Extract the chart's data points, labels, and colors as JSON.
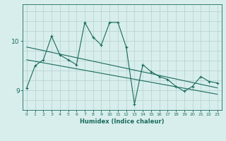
{
  "xlabel": "Humidex (Indice chaleur)",
  "background_color": "#d8eeed",
  "grid_color": "#b8d4d2",
  "line_color": "#1a6b5a",
  "xmin": -0.5,
  "xmax": 23.5,
  "ymin": 8.6,
  "ymax": 10.75,
  "yticks": [
    9,
    10
  ],
  "xticks": [
    0,
    1,
    2,
    3,
    4,
    5,
    6,
    7,
    8,
    9,
    10,
    11,
    12,
    13,
    14,
    15,
    16,
    17,
    18,
    19,
    20,
    21,
    22,
    23
  ],
  "series1_x": [
    0,
    1,
    2,
    3,
    4,
    5,
    6,
    7,
    8,
    9,
    10,
    11,
    12,
    13,
    14,
    15,
    16,
    17,
    18,
    19,
    20,
    21,
    22,
    23
  ],
  "series1_y": [
    9.05,
    9.5,
    9.62,
    10.1,
    9.72,
    9.62,
    9.52,
    10.38,
    10.08,
    9.92,
    10.38,
    10.38,
    9.88,
    8.72,
    9.52,
    9.38,
    9.28,
    9.22,
    9.08,
    8.98,
    9.08,
    9.28,
    9.18,
    9.15
  ],
  "series2_x": [
    0,
    23
  ],
  "series2_y": [
    9.88,
    9.05
  ],
  "series3_x": [
    0,
    23
  ],
  "series3_y": [
    9.62,
    8.92
  ]
}
